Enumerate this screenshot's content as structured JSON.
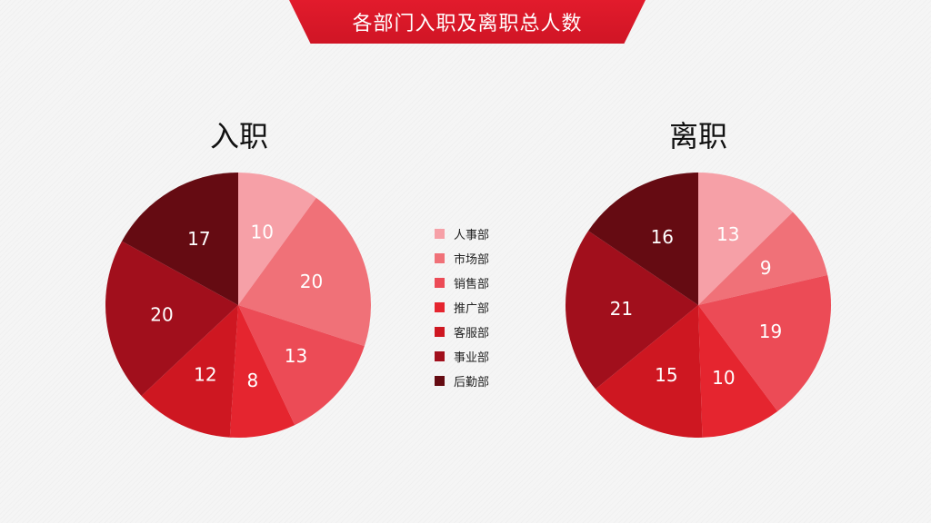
{
  "header": {
    "title": "各部门入职及离职总人数"
  },
  "colors": [
    "#f6a0a7",
    "#f07178",
    "#ec4b56",
    "#e5252f",
    "#ce1721",
    "#a10f1c",
    "#650b12"
  ],
  "chart_data": [
    {
      "type": "pie",
      "title": "入职",
      "categories": [
        "人事部",
        "市场部",
        "销售部",
        "推广部",
        "客服部",
        "事业部",
        "后勤部"
      ],
      "values": [
        10,
        20,
        13,
        8,
        12,
        20,
        17
      ]
    },
    {
      "type": "pie",
      "title": "离职",
      "categories": [
        "人事部",
        "市场部",
        "销售部",
        "推广部",
        "客服部",
        "事业部",
        "后勤部"
      ],
      "values": [
        13,
        9,
        19,
        10,
        15,
        21,
        16
      ]
    }
  ],
  "legend": {
    "position": "center",
    "items": [
      "人事部",
      "市场部",
      "销售部",
      "推广部",
      "客服部",
      "事业部",
      "后勤部"
    ]
  }
}
